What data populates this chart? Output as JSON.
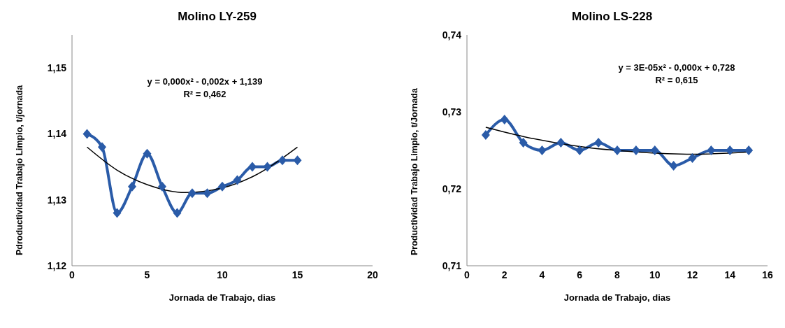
{
  "chart_data": [
    {
      "type": "line",
      "title": "Molino LY-259",
      "xlabel": "Jornada de Trabajo, dias",
      "ylabel": "Pdroductividad Trabajo Limpio, t/jornada",
      "x": [
        1,
        2,
        3,
        4,
        5,
        6,
        7,
        8,
        9,
        10,
        11,
        12,
        13,
        14,
        15
      ],
      "xlim": [
        0,
        20
      ],
      "xticks": [
        0,
        5,
        10,
        15,
        20
      ],
      "ylim": [
        1.12,
        1.155
      ],
      "yticks": [
        {
          "value": 1.12,
          "label": "1,12"
        },
        {
          "value": 1.13,
          "label": "1,13"
        },
        {
          "value": 1.14,
          "label": "1,14"
        },
        {
          "value": 1.15,
          "label": "1,15"
        }
      ],
      "grid": false,
      "legend": false,
      "series": [
        {
          "color": "#2a5ba8",
          "marker": "diamond",
          "values": [
            1.14,
            1.138,
            1.128,
            1.132,
            1.137,
            1.132,
            1.128,
            1.131,
            1.131,
            1.132,
            1.133,
            1.135,
            1.135,
            1.136,
            1.136
          ]
        },
        {
          "color": "#000000",
          "marker": "none",
          "x": [
            1,
            3,
            5,
            7.5,
            10,
            12,
            15
          ],
          "values": [
            1.138,
            1.1345,
            1.1323,
            1.1311,
            1.1318,
            1.1335,
            1.138
          ]
        }
      ],
      "annotations": [
        "y = 0,000x² - 0,002x + 1,139",
        "R² = 0,462"
      ]
    },
    {
      "type": "line",
      "title": "Molino LS-228",
      "xlabel": "Jornada de Trabajo, dias",
      "ylabel": "Productividad Trabajo Limpio, t/Jornada",
      "x": [
        1,
        2,
        3,
        4,
        5,
        6,
        7,
        8,
        9,
        10,
        11,
        12,
        13,
        14,
        15
      ],
      "xlim": [
        0,
        16
      ],
      "xticks": [
        0,
        2,
        4,
        6,
        8,
        10,
        12,
        14,
        16
      ],
      "ylim": [
        0.71,
        0.74
      ],
      "yticks": [
        {
          "value": 0.71,
          "label": "0,71"
        },
        {
          "value": 0.72,
          "label": "0,72"
        },
        {
          "value": 0.73,
          "label": "0,73"
        },
        {
          "value": 0.74,
          "label": "0,74"
        }
      ],
      "grid": false,
      "legend": false,
      "series": [
        {
          "color": "#2a5ba8",
          "marker": "diamond",
          "values": [
            0.727,
            0.729,
            0.726,
            0.725,
            0.726,
            0.725,
            0.726,
            0.725,
            0.725,
            0.725,
            0.723,
            0.724,
            0.725,
            0.725,
            0.725
          ]
        },
        {
          "color": "#000000",
          "marker": "none",
          "x": [
            1,
            3,
            6,
            9,
            12,
            15
          ],
          "values": [
            0.728,
            0.7268,
            0.7255,
            0.7248,
            0.7245,
            0.7248
          ]
        }
      ],
      "annotations": [
        "y = 3E-05x² - 0,000x + 0,728",
        "R² = 0,615"
      ]
    }
  ]
}
